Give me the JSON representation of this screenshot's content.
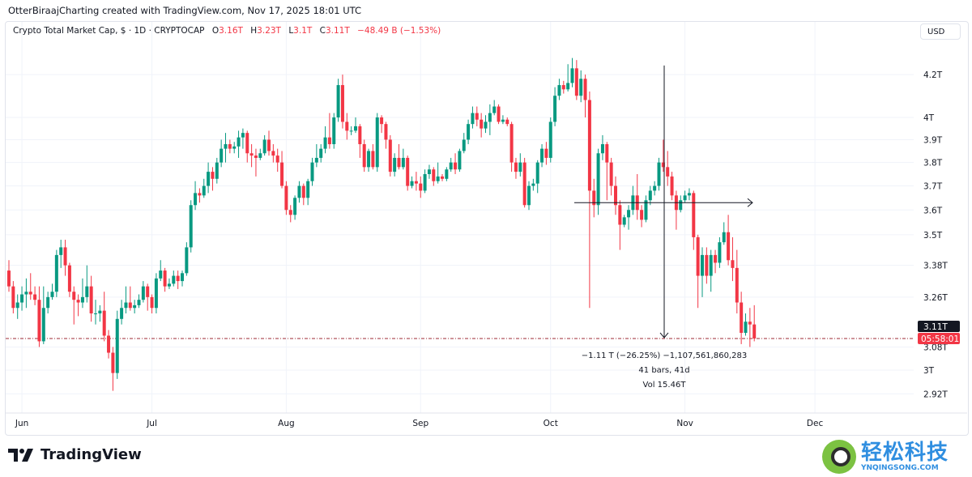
{
  "credit": "OtterBiraajCharting created with TradingView.com, Nov 17, 2025 18:01 UTC",
  "legend": {
    "symbol": "Crypto Total Market Cap, $ · 1D · CRYPTOCAP",
    "o_label": "O",
    "o": "3.16T",
    "h_label": "H",
    "h": "3.23T",
    "l_label": "L",
    "l": "3.1T",
    "c_label": "C",
    "c": "3.11T",
    "change": "−48.49 B (−1.53%)"
  },
  "currency_button": "USD",
  "last_price_label": "3.11T",
  "countdown_label": "05:58:01",
  "measure": {
    "line1": "−1.11 T (−26.25%) −1,107,561,860,283",
    "line2": "41 bars, 41d",
    "line3": "Vol 15.46T"
  },
  "branding": {
    "logo_text": "TradingView",
    "watermark_cn": "轻松科技",
    "watermark_url": "YNQINGSONG.COM"
  },
  "colors": {
    "up": "#089981",
    "down": "#f23645",
    "grid": "#f0f3fa",
    "text": "#131722"
  },
  "chart_data": {
    "type": "candlestick",
    "interval": "1D",
    "y_scale": "log",
    "ylim": [
      2.88,
      4.32
    ],
    "y_unit": "T",
    "grid": true,
    "start_date": "2025-05-29",
    "end_date": "2025-11-17",
    "x_tick_labels": [
      {
        "date": "2025-06-01",
        "label": "Jun"
      },
      {
        "date": "2025-07-01",
        "label": "Jul"
      },
      {
        "date": "2025-08-01",
        "label": "Aug"
      },
      {
        "date": "2025-09-01",
        "label": "Sep"
      },
      {
        "date": "2025-10-01",
        "label": "Oct"
      },
      {
        "date": "2025-11-01",
        "label": "Nov"
      },
      {
        "date": "2025-12-01",
        "label": "Dec"
      }
    ],
    "y_ticks": [
      {
        "value": 4.2,
        "label": "4.2T"
      },
      {
        "value": 4.0,
        "label": "4T"
      },
      {
        "value": 3.9,
        "label": "3.9T"
      },
      {
        "value": 3.8,
        "label": "3.8T"
      },
      {
        "value": 3.7,
        "label": "3.7T"
      },
      {
        "value": 3.6,
        "label": "3.6T"
      },
      {
        "value": 3.5,
        "label": "3.5T"
      },
      {
        "value": 3.38,
        "label": "3.38T"
      },
      {
        "value": 3.26,
        "label": "3.26T"
      },
      {
        "value": 3.08,
        "label": "3.08T"
      },
      {
        "value": 3.0,
        "label": "3T"
      },
      {
        "value": 2.92,
        "label": "2.92T"
      }
    ],
    "last_price": 3.11,
    "measure_tool": {
      "from_date": "2025-10-07",
      "to_date": "2025-11-17",
      "from_value": 4.22,
      "to_value": 3.11,
      "span_start_date": "2025-10-15",
      "span_end_date": "2025-11-17",
      "level": 3.63
    },
    "candles_ohlc": [
      [
        3.36,
        3.4,
        3.28,
        3.3
      ],
      [
        3.3,
        3.32,
        3.2,
        3.22
      ],
      [
        3.22,
        3.27,
        3.18,
        3.24
      ],
      [
        3.24,
        3.3,
        3.21,
        3.27
      ],
      [
        3.27,
        3.33,
        3.22,
        3.28
      ],
      [
        3.28,
        3.35,
        3.25,
        3.27
      ],
      [
        3.27,
        3.3,
        3.23,
        3.25
      ],
      [
        3.25,
        3.3,
        3.08,
        3.1
      ],
      [
        3.1,
        3.3,
        3.09,
        3.22
      ],
      [
        3.22,
        3.28,
        3.2,
        3.26
      ],
      [
        3.26,
        3.31,
        3.25,
        3.28
      ],
      [
        3.28,
        3.44,
        3.26,
        3.42
      ],
      [
        3.42,
        3.48,
        3.37,
        3.45
      ],
      [
        3.45,
        3.48,
        3.34,
        3.38
      ],
      [
        3.38,
        3.39,
        3.26,
        3.28
      ],
      [
        3.28,
        3.3,
        3.16,
        3.25
      ],
      [
        3.25,
        3.27,
        3.19,
        3.24
      ],
      [
        3.24,
        3.33,
        3.22,
        3.26
      ],
      [
        3.26,
        3.38,
        3.24,
        3.3
      ],
      [
        3.3,
        3.34,
        3.17,
        3.2
      ],
      [
        3.2,
        3.25,
        3.16,
        3.2
      ],
      [
        3.2,
        3.23,
        3.17,
        3.21
      ],
      [
        3.21,
        3.28,
        3.1,
        3.12
      ],
      [
        3.12,
        3.14,
        3.04,
        3.06
      ],
      [
        3.06,
        3.08,
        2.93,
        2.99
      ],
      [
        2.99,
        3.21,
        2.97,
        3.18
      ],
      [
        3.18,
        3.25,
        3.16,
        3.22
      ],
      [
        3.22,
        3.3,
        3.2,
        3.24
      ],
      [
        3.24,
        3.3,
        3.21,
        3.22
      ],
      [
        3.22,
        3.25,
        3.2,
        3.23
      ],
      [
        3.23,
        3.27,
        3.22,
        3.25
      ],
      [
        3.25,
        3.32,
        3.24,
        3.3
      ],
      [
        3.3,
        3.31,
        3.21,
        3.26
      ],
      [
        3.26,
        3.27,
        3.2,
        3.22
      ],
      [
        3.22,
        3.35,
        3.2,
        3.33
      ],
      [
        3.33,
        3.4,
        3.32,
        3.36
      ],
      [
        3.36,
        3.37,
        3.28,
        3.3
      ],
      [
        3.3,
        3.33,
        3.29,
        3.31
      ],
      [
        3.31,
        3.36,
        3.3,
        3.34
      ],
      [
        3.34,
        3.36,
        3.29,
        3.32
      ],
      [
        3.32,
        3.36,
        3.3,
        3.35
      ],
      [
        3.35,
        3.47,
        3.34,
        3.45
      ],
      [
        3.45,
        3.64,
        3.43,
        3.62
      ],
      [
        3.62,
        3.72,
        3.6,
        3.67
      ],
      [
        3.67,
        3.69,
        3.63,
        3.66
      ],
      [
        3.66,
        3.73,
        3.65,
        3.7
      ],
      [
        3.7,
        3.8,
        3.67,
        3.76
      ],
      [
        3.76,
        3.78,
        3.68,
        3.73
      ],
      [
        3.73,
        3.82,
        3.71,
        3.8
      ],
      [
        3.8,
        3.9,
        3.78,
        3.86
      ],
      [
        3.86,
        3.93,
        3.8,
        3.88
      ],
      [
        3.88,
        3.9,
        3.84,
        3.86
      ],
      [
        3.86,
        3.89,
        3.84,
        3.87
      ],
      [
        3.87,
        3.94,
        3.82,
        3.91
      ],
      [
        3.91,
        3.95,
        3.86,
        3.93
      ],
      [
        3.93,
        3.94,
        3.8,
        3.84
      ],
      [
        3.84,
        3.88,
        3.78,
        3.83
      ],
      [
        3.83,
        3.86,
        3.74,
        3.82
      ],
      [
        3.82,
        3.86,
        3.81,
        3.84
      ],
      [
        3.84,
        3.92,
        3.83,
        3.9
      ],
      [
        3.9,
        3.94,
        3.83,
        3.85
      ],
      [
        3.85,
        3.88,
        3.8,
        3.83
      ],
      [
        3.83,
        3.86,
        3.76,
        3.8
      ],
      [
        3.8,
        3.85,
        3.69,
        3.7
      ],
      [
        3.7,
        3.72,
        3.58,
        3.6
      ],
      [
        3.6,
        3.62,
        3.55,
        3.58
      ],
      [
        3.58,
        3.66,
        3.56,
        3.65
      ],
      [
        3.65,
        3.72,
        3.63,
        3.7
      ],
      [
        3.7,
        3.71,
        3.62,
        3.65
      ],
      [
        3.65,
        3.73,
        3.62,
        3.72
      ],
      [
        3.72,
        3.82,
        3.7,
        3.8
      ],
      [
        3.8,
        3.88,
        3.78,
        3.82
      ],
      [
        3.82,
        3.88,
        3.8,
        3.86
      ],
      [
        3.86,
        3.96,
        3.84,
        3.91
      ],
      [
        3.91,
        4.02,
        3.86,
        3.88
      ],
      [
        3.88,
        4.02,
        3.86,
        4.0
      ],
      [
        4.0,
        4.18,
        3.98,
        4.15
      ],
      [
        4.15,
        4.2,
        3.95,
        3.98
      ],
      [
        3.98,
        4.02,
        3.9,
        3.94
      ],
      [
        3.94,
        3.96,
        3.92,
        3.94
      ],
      [
        3.94,
        4.0,
        3.93,
        3.96
      ],
      [
        3.96,
        3.97,
        3.82,
        3.88
      ],
      [
        3.88,
        3.9,
        3.76,
        3.78
      ],
      [
        3.78,
        3.86,
        3.76,
        3.85
      ],
      [
        3.85,
        3.88,
        3.77,
        3.78
      ],
      [
        3.78,
        4.02,
        3.76,
        4.0
      ],
      [
        4.0,
        4.01,
        3.93,
        3.97
      ],
      [
        3.97,
        3.98,
        3.86,
        3.9
      ],
      [
        3.9,
        3.92,
        3.74,
        3.76
      ],
      [
        3.76,
        3.84,
        3.74,
        3.82
      ],
      [
        3.82,
        3.88,
        3.77,
        3.78
      ],
      [
        3.78,
        3.86,
        3.77,
        3.82
      ],
      [
        3.82,
        3.83,
        3.68,
        3.7
      ],
      [
        3.7,
        3.74,
        3.69,
        3.72
      ],
      [
        3.72,
        3.76,
        3.68,
        3.71
      ],
      [
        3.71,
        3.74,
        3.65,
        3.68
      ],
      [
        3.68,
        3.77,
        3.67,
        3.75
      ],
      [
        3.75,
        3.79,
        3.73,
        3.77
      ],
      [
        3.77,
        3.78,
        3.7,
        3.72
      ],
      [
        3.72,
        3.8,
        3.71,
        3.74
      ],
      [
        3.74,
        3.75,
        3.72,
        3.73
      ],
      [
        3.73,
        3.78,
        3.72,
        3.77
      ],
      [
        3.77,
        3.82,
        3.76,
        3.8
      ],
      [
        3.8,
        3.84,
        3.75,
        3.77
      ],
      [
        3.77,
        3.86,
        3.76,
        3.85
      ],
      [
        3.85,
        3.93,
        3.84,
        3.9
      ],
      [
        3.9,
        3.99,
        3.88,
        3.97
      ],
      [
        3.97,
        4.05,
        3.95,
        4.02
      ],
      [
        4.02,
        4.05,
        3.96,
        3.99
      ],
      [
        3.99,
        4.02,
        3.91,
        3.95
      ],
      [
        3.95,
        4.01,
        3.93,
        3.98
      ],
      [
        3.98,
        4.06,
        3.92,
        4.02
      ],
      [
        4.02,
        4.08,
        4.01,
        4.05
      ],
      [
        4.05,
        4.06,
        3.97,
        3.98
      ],
      [
        3.98,
        4.01,
        3.97,
        3.99
      ],
      [
        3.99,
        4.0,
        3.96,
        3.97
      ],
      [
        3.97,
        3.98,
        3.76,
        3.8
      ],
      [
        3.8,
        3.82,
        3.73,
        3.76
      ],
      [
        3.76,
        3.84,
        3.74,
        3.8
      ],
      [
        3.8,
        3.82,
        3.61,
        3.62
      ],
      [
        3.62,
        3.72,
        3.6,
        3.7
      ],
      [
        3.7,
        3.73,
        3.68,
        3.71
      ],
      [
        3.71,
        3.81,
        3.67,
        3.8
      ],
      [
        3.8,
        3.88,
        3.78,
        3.86
      ],
      [
        3.86,
        3.89,
        3.79,
        3.82
      ],
      [
        3.82,
        4.0,
        3.8,
        3.98
      ],
      [
        3.98,
        4.14,
        3.96,
        4.1
      ],
      [
        4.1,
        4.18,
        4.08,
        4.15
      ],
      [
        4.15,
        4.17,
        4.11,
        4.13
      ],
      [
        4.13,
        4.25,
        4.12,
        4.16
      ],
      [
        4.16,
        4.28,
        4.14,
        4.23
      ],
      [
        4.23,
        4.27,
        4.08,
        4.1
      ],
      [
        4.1,
        4.22,
        4.07,
        4.18
      ],
      [
        4.18,
        4.2,
        4.0,
        4.08
      ],
      [
        4.08,
        4.12,
        3.22,
        3.68
      ],
      [
        3.68,
        3.73,
        3.57,
        3.62
      ],
      [
        3.62,
        3.86,
        3.58,
        3.84
      ],
      [
        3.84,
        3.92,
        3.81,
        3.88
      ],
      [
        3.88,
        3.89,
        3.64,
        3.8
      ],
      [
        3.8,
        3.82,
        3.66,
        3.7
      ],
      [
        3.7,
        3.74,
        3.58,
        3.62
      ],
      [
        3.62,
        3.64,
        3.44,
        3.54
      ],
      [
        3.54,
        3.58,
        3.53,
        3.57
      ],
      [
        3.57,
        3.62,
        3.52,
        3.6
      ],
      [
        3.6,
        3.7,
        3.58,
        3.66
      ],
      [
        3.66,
        3.75,
        3.56,
        3.6
      ],
      [
        3.6,
        3.62,
        3.53,
        3.56
      ],
      [
        3.56,
        3.66,
        3.55,
        3.64
      ],
      [
        3.64,
        3.7,
        3.62,
        3.68
      ],
      [
        3.68,
        3.72,
        3.66,
        3.7
      ],
      [
        3.7,
        3.82,
        3.68,
        3.8
      ],
      [
        3.8,
        3.9,
        3.76,
        3.78
      ],
      [
        3.78,
        3.85,
        3.7,
        3.74
      ],
      [
        3.74,
        3.76,
        3.64,
        3.66
      ],
      [
        3.66,
        3.68,
        3.52,
        3.6
      ],
      [
        3.6,
        3.66,
        3.59,
        3.64
      ],
      [
        3.64,
        3.68,
        3.63,
        3.66
      ],
      [
        3.66,
        3.69,
        3.64,
        3.67
      ],
      [
        3.67,
        3.68,
        3.44,
        3.49
      ],
      [
        3.49,
        3.5,
        3.22,
        3.34
      ],
      [
        3.34,
        3.45,
        3.26,
        3.42
      ],
      [
        3.42,
        3.45,
        3.31,
        3.34
      ],
      [
        3.34,
        3.44,
        3.28,
        3.42
      ],
      [
        3.42,
        3.44,
        3.35,
        3.39
      ],
      [
        3.39,
        3.49,
        3.37,
        3.47
      ],
      [
        3.47,
        3.55,
        3.46,
        3.51
      ],
      [
        3.51,
        3.58,
        3.38,
        3.4
      ],
      [
        3.4,
        3.49,
        3.32,
        3.37
      ],
      [
        3.37,
        3.44,
        3.2,
        3.24
      ],
      [
        3.24,
        3.28,
        3.09,
        3.13
      ],
      [
        3.13,
        3.2,
        3.12,
        3.17
      ],
      [
        3.17,
        3.22,
        3.08,
        3.16
      ],
      [
        3.16,
        3.23,
        3.1,
        3.11
      ]
    ]
  }
}
